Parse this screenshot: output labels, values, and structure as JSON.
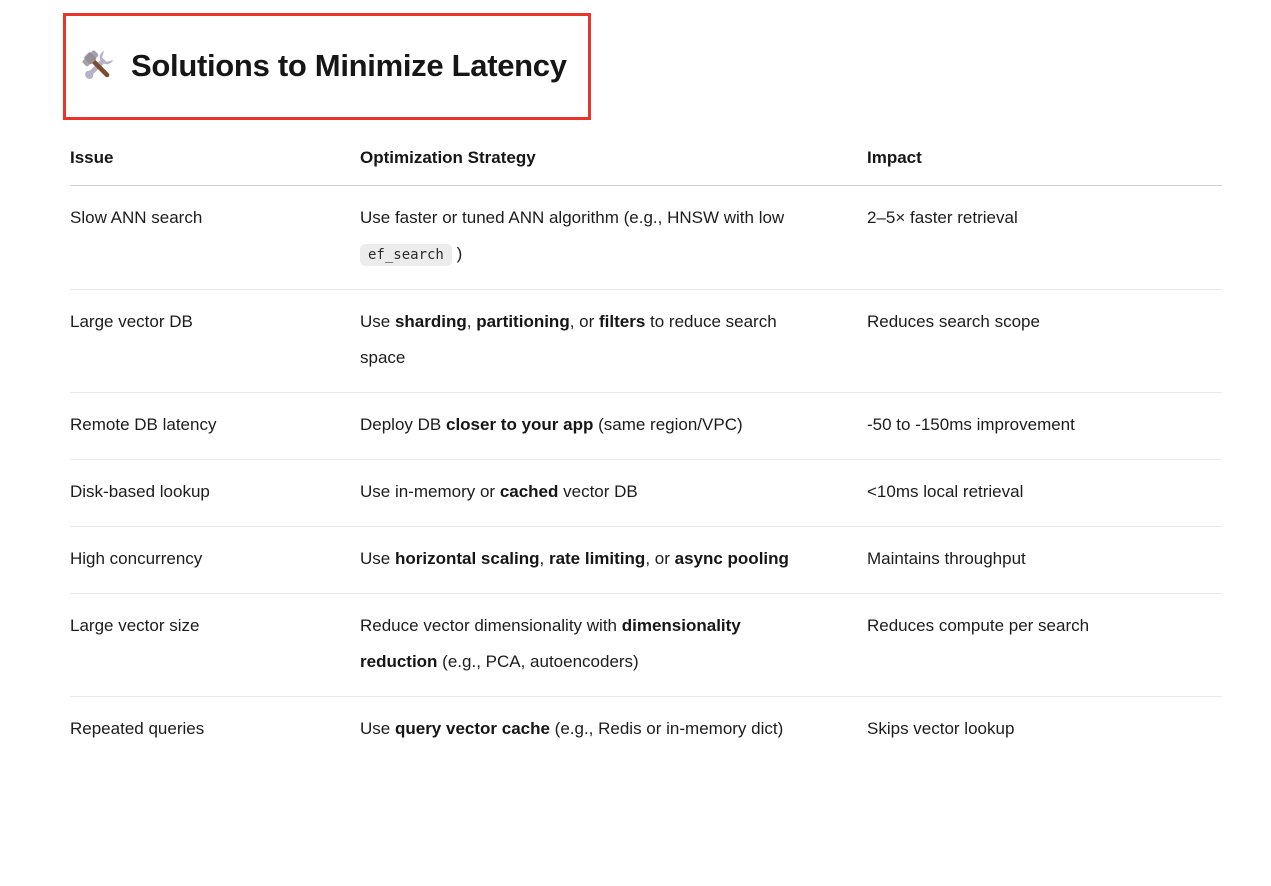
{
  "title": {
    "icon": "hammer-and-wrench",
    "icon_char": "🛠️",
    "text": "Solutions to Minimize Latency",
    "annotation_border_color": "#e7352c"
  },
  "table": {
    "columns": [
      {
        "label": "Issue"
      },
      {
        "label": "Optimization Strategy"
      },
      {
        "label": "Impact"
      }
    ],
    "rows": [
      {
        "issue": "Slow ANN search",
        "strategy": [
          {
            "text": "Use faster or tuned ANN algorithm (e.g., HNSW with low "
          },
          {
            "text": "ef_search",
            "code": true
          },
          {
            "text": " )"
          }
        ],
        "impact": "2–5× faster retrieval"
      },
      {
        "issue": "Large vector DB",
        "strategy": [
          {
            "text": "Use "
          },
          {
            "text": "sharding",
            "bold": true
          },
          {
            "text": ", "
          },
          {
            "text": "partitioning",
            "bold": true
          },
          {
            "text": ", or "
          },
          {
            "text": "filters",
            "bold": true
          },
          {
            "text": " to reduce search space"
          }
        ],
        "impact": "Reduces search scope"
      },
      {
        "issue": "Remote DB latency",
        "strategy": [
          {
            "text": "Deploy DB "
          },
          {
            "text": "closer to your app",
            "bold": true
          },
          {
            "text": " (same region/VPC)"
          }
        ],
        "impact": "-50 to -150ms improvement"
      },
      {
        "issue": "Disk-based lookup",
        "strategy": [
          {
            "text": "Use in-memory or "
          },
          {
            "text": "cached",
            "bold": true
          },
          {
            "text": " vector DB"
          }
        ],
        "impact": "<10ms local retrieval"
      },
      {
        "issue": "High concurrency",
        "strategy": [
          {
            "text": "Use "
          },
          {
            "text": "horizontal scaling",
            "bold": true
          },
          {
            "text": ", "
          },
          {
            "text": "rate limiting",
            "bold": true
          },
          {
            "text": ", or "
          },
          {
            "text": "async pooling",
            "bold": true
          }
        ],
        "impact": "Maintains throughput"
      },
      {
        "issue": "Large vector size",
        "strategy": [
          {
            "text": "Reduce vector dimensionality with "
          },
          {
            "text": "dimensionality reduction",
            "bold": true
          },
          {
            "text": " (e.g., PCA, autoencoders)"
          }
        ],
        "impact": "Reduces compute per search"
      },
      {
        "issue": "Repeated queries",
        "strategy": [
          {
            "text": "Use "
          },
          {
            "text": "query vector cache",
            "bold": true
          },
          {
            "text": " (e.g., Redis or in-memory dict)"
          }
        ],
        "impact": "Skips vector lookup"
      }
    ]
  }
}
